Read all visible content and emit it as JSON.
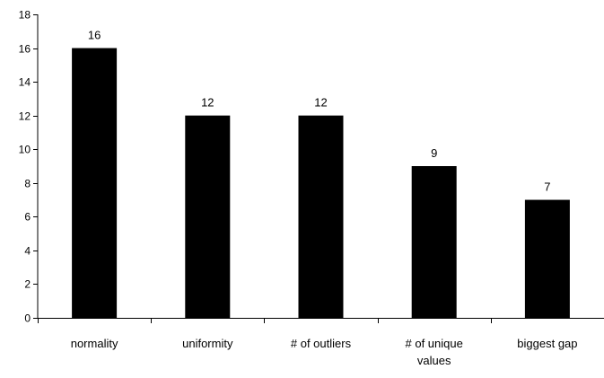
{
  "chart_data": {
    "type": "bar",
    "title": "",
    "xlabel": "",
    "ylabel": "",
    "categories": [
      [
        "normality"
      ],
      [
        "uniformity"
      ],
      [
        "# of outliers"
      ],
      [
        "# of unique",
        "values"
      ],
      [
        "biggest gap"
      ]
    ],
    "values": [
      16,
      12,
      12,
      9,
      7
    ],
    "data_labels": [
      "16",
      "12",
      "12",
      "9",
      "7"
    ],
    "ylim": [
      0,
      18
    ],
    "yticks": [
      0,
      2,
      4,
      6,
      8,
      10,
      12,
      14,
      16,
      18
    ],
    "ytick_labels": [
      "0",
      "2",
      "4",
      "6",
      "8",
      "10",
      "12",
      "14",
      "16",
      "18"
    ],
    "grid": false,
    "legend": "none",
    "bar_color": "#000000",
    "axis_color": "#000000",
    "background_color": "#ffffff"
  }
}
